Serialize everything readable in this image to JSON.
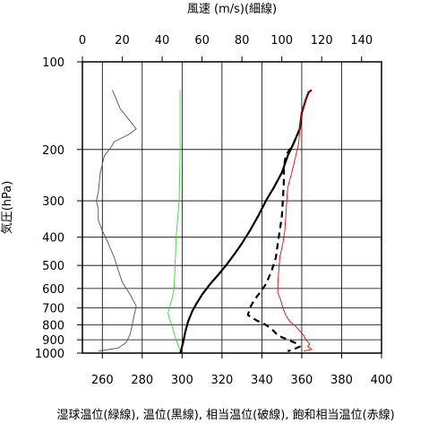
{
  "chart_data": {
    "type": "line",
    "title": "",
    "top_axis": {
      "label": "風速 (m/s)(細線)",
      "range": [
        0,
        150
      ],
      "ticks": [
        0,
        20,
        40,
        60,
        80,
        100,
        120,
        140
      ]
    },
    "bottom_axis": {
      "label": "湿球温位(緑線), 温位(黒線), 相当温位(破線), 飽和相当温位(赤線)",
      "range": [
        250,
        400
      ],
      "ticks": [
        260,
        280,
        300,
        320,
        340,
        360,
        380,
        400
      ]
    },
    "y_axis": {
      "label": "気圧(hPa)",
      "scale": "log",
      "reversed": true,
      "range": [
        1000,
        100
      ],
      "ticks": [
        100,
        200,
        300,
        400,
        500,
        600,
        700,
        800,
        900,
        1000
      ]
    },
    "grid": true,
    "series": [
      {
        "axis": "top",
        "color": "#555555",
        "style": "thin",
        "points": [
          [
            15,
            125
          ],
          [
            19,
            145
          ],
          [
            24,
            160
          ],
          [
            27,
            170
          ],
          [
            23,
            178
          ],
          [
            16,
            188
          ],
          [
            14,
            198
          ],
          [
            11,
            210
          ],
          [
            9,
            240
          ],
          [
            8,
            280
          ],
          [
            7,
            300
          ],
          [
            8,
            320
          ],
          [
            8,
            350
          ],
          [
            10,
            380
          ],
          [
            13,
            420
          ],
          [
            16,
            470
          ],
          [
            18,
            520
          ],
          [
            20,
            570
          ],
          [
            24,
            630
          ],
          [
            27,
            690
          ],
          [
            26,
            740
          ],
          [
            25,
            800
          ],
          [
            24,
            860
          ],
          [
            22,
            920
          ],
          [
            18,
            960
          ],
          [
            8,
            985
          ]
        ]
      },
      {
        "axis": "bottom",
        "color": "#33dd33",
        "style": "thin",
        "points": [
          [
            299,
            125
          ],
          [
            299,
            200
          ],
          [
            298.5,
            300
          ],
          [
            297,
            400
          ],
          [
            296.5,
            500
          ],
          [
            296,
            600
          ],
          [
            295,
            650
          ],
          [
            293.5,
            700
          ],
          [
            293,
            730
          ],
          [
            293.5,
            760
          ],
          [
            294.5,
            790
          ],
          [
            295.5,
            830
          ],
          [
            296.5,
            880
          ],
          [
            297.5,
            920
          ],
          [
            298.5,
            960
          ],
          [
            300,
            1000
          ]
        ]
      },
      {
        "axis": "bottom",
        "color": "#000000",
        "style": "thick",
        "points": [
          [
            365,
            125
          ],
          [
            363.5,
            127
          ],
          [
            362,
            135
          ],
          [
            360,
            150
          ],
          [
            359,
            170
          ],
          [
            356,
            190
          ],
          [
            353,
            210
          ],
          [
            350,
            240
          ],
          [
            346,
            270
          ],
          [
            342,
            300
          ],
          [
            338,
            340
          ],
          [
            334,
            380
          ],
          [
            330,
            420
          ],
          [
            326,
            460
          ],
          [
            322,
            500
          ],
          [
            318,
            540
          ],
          [
            314,
            580
          ],
          [
            310,
            630
          ],
          [
            307,
            680
          ],
          [
            305,
            720
          ],
          [
            303,
            780
          ],
          [
            301.5,
            850
          ],
          [
            300.5,
            920
          ],
          [
            299.5,
            980
          ],
          [
            299,
            1000
          ]
        ]
      },
      {
        "axis": "bottom",
        "color": "#000000",
        "style": "dashed",
        "points": [
          [
            359,
            170
          ],
          [
            356,
            190
          ],
          [
            352,
            210
          ],
          [
            351,
            230
          ],
          [
            351,
            260
          ],
          [
            350.5,
            300
          ],
          [
            350,
            340
          ],
          [
            349,
            380
          ],
          [
            348,
            420
          ],
          [
            347,
            470
          ],
          [
            345,
            520
          ],
          [
            342,
            580
          ],
          [
            339,
            620
          ],
          [
            336,
            660
          ],
          [
            334,
            700
          ],
          [
            333,
            740
          ],
          [
            337,
            770
          ],
          [
            342,
            800
          ],
          [
            346,
            840
          ],
          [
            348,
            870
          ],
          [
            353,
            900
          ],
          [
            358,
            930
          ],
          [
            359,
            950
          ],
          [
            356,
            970
          ],
          [
            353,
            985
          ]
        ]
      },
      {
        "axis": "bottom",
        "color": "#ff0000",
        "style": "thin",
        "points": [
          [
            365,
            125
          ],
          [
            363.5,
            127
          ],
          [
            362,
            135
          ],
          [
            360,
            150
          ],
          [
            359,
            170
          ],
          [
            358.5,
            190
          ],
          [
            357,
            210
          ],
          [
            355,
            240
          ],
          [
            353,
            270
          ],
          [
            352.5,
            300
          ],
          [
            352,
            340
          ],
          [
            351.5,
            380
          ],
          [
            350.5,
            420
          ],
          [
            349,
            470
          ],
          [
            348.5,
            520
          ],
          [
            348,
            580
          ],
          [
            348,
            620
          ],
          [
            349.5,
            660
          ],
          [
            350.5,
            700
          ],
          [
            352,
            740
          ],
          [
            354,
            780
          ],
          [
            357,
            810
          ],
          [
            359,
            840
          ],
          [
            361,
            870
          ],
          [
            362,
            900
          ],
          [
            364,
            930
          ],
          [
            363,
            950
          ],
          [
            365,
            970
          ],
          [
            361,
            985
          ]
        ]
      }
    ]
  }
}
